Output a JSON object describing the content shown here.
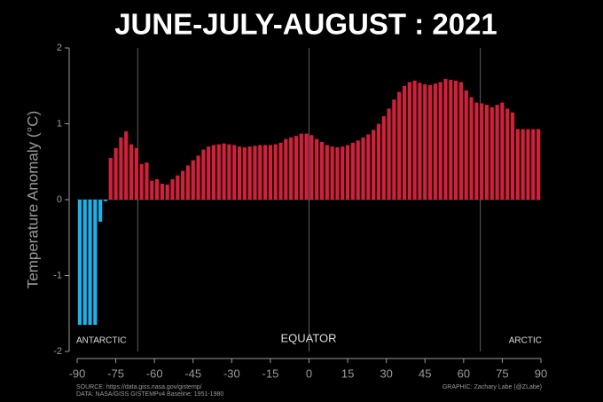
{
  "chart_data": {
    "type": "bar",
    "title": "JUNE-JULY-AUGUST : 2021",
    "y_label": "Temperature Anomaly (°C)",
    "x": [
      -89,
      -87,
      -85,
      -83,
      -81,
      -79,
      -77,
      -75,
      -73,
      -71,
      -69,
      -67,
      -65,
      -63,
      -61,
      -59,
      -57,
      -55,
      -53,
      -51,
      -49,
      -47,
      -45,
      -43,
      -41,
      -39,
      -37,
      -35,
      -33,
      -31,
      -29,
      -27,
      -25,
      -23,
      -21,
      -19,
      -17,
      -15,
      -13,
      -11,
      -9,
      -7,
      -5,
      -3,
      -1,
      1,
      3,
      5,
      7,
      9,
      11,
      13,
      15,
      17,
      19,
      21,
      23,
      25,
      27,
      29,
      31,
      33,
      35,
      37,
      39,
      41,
      43,
      45,
      47,
      49,
      51,
      53,
      55,
      57,
      59,
      61,
      63,
      65,
      67,
      69,
      71,
      73,
      75,
      77,
      79,
      81,
      83,
      85,
      87,
      89
    ],
    "values": [
      -1.65,
      -1.65,
      -1.65,
      -1.65,
      -0.29,
      -0.02,
      0.55,
      0.68,
      0.82,
      0.9,
      0.73,
      0.68,
      0.47,
      0.49,
      0.25,
      0.27,
      0.21,
      0.2,
      0.27,
      0.32,
      0.38,
      0.45,
      0.52,
      0.58,
      0.66,
      0.7,
      0.72,
      0.73,
      0.74,
      0.73,
      0.72,
      0.7,
      0.69,
      0.7,
      0.71,
      0.72,
      0.72,
      0.72,
      0.73,
      0.75,
      0.8,
      0.82,
      0.84,
      0.87,
      0.87,
      0.85,
      0.8,
      0.76,
      0.72,
      0.7,
      0.69,
      0.7,
      0.72,
      0.75,
      0.78,
      0.82,
      0.86,
      0.92,
      1.0,
      1.1,
      1.2,
      1.32,
      1.42,
      1.5,
      1.55,
      1.57,
      1.54,
      1.52,
      1.51,
      1.53,
      1.55,
      1.59,
      1.58,
      1.57,
      1.55,
      1.44,
      1.35,
      1.28,
      1.27,
      1.25,
      1.22,
      1.25,
      1.28,
      1.2,
      1.15,
      0.93,
      0.93,
      0.93,
      0.93,
      0.93
    ],
    "positive_color": "#d0203a",
    "negative_color": "#1fb0ea",
    "xlim": [
      -90,
      90
    ],
    "xticks": [
      -90,
      -75,
      -60,
      -45,
      -30,
      -15,
      0,
      15,
      30,
      45,
      60,
      75,
      90
    ],
    "ylim": [
      -2,
      2
    ],
    "yticks": [
      -2,
      -1,
      0,
      1,
      2
    ],
    "reference_lines": [
      -66.5,
      0,
      66.5
    ],
    "annotations": [
      "ANTARCTIC",
      "EQUATOR",
      "ARCTIC"
    ],
    "notes": [
      "SOURCE: https://data.giss.nasa.gov/gistemp/",
      "DATA: NASA/GISS GISTEMPv4 Baseline: 1951-1980",
      "GRAPHIC: Zachary Labe (@ZLabe)"
    ]
  }
}
